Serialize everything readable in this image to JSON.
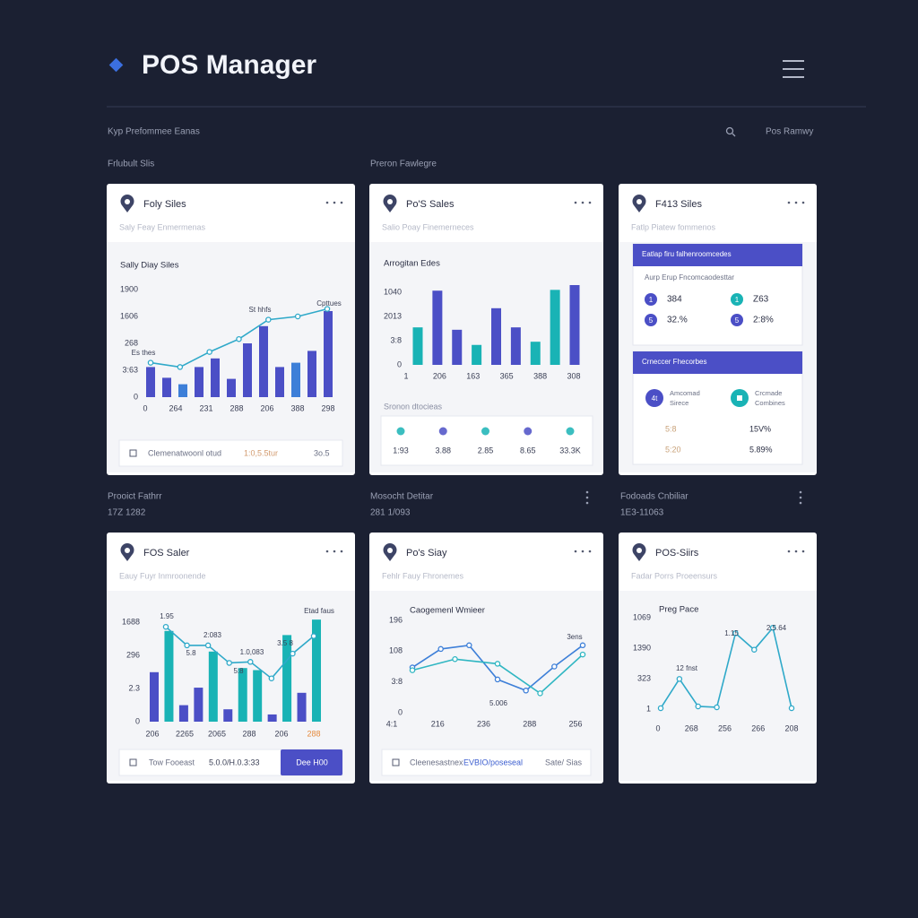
{
  "header": {
    "title": "POS Manager",
    "subtitle": "Kyp Prefommee Eanas",
    "search_label": "Pos Ramwy"
  },
  "sections": [
    "Frlubult Slis",
    "Preron Fawlegre"
  ],
  "row_labels": [
    {
      "title": "Prooict Fathrr",
      "value": "17Z 1282"
    },
    {
      "title": "Mosocht Detitar",
      "value": "281 1/093"
    },
    {
      "title": "Fodoads Cnbiliar",
      "value": "1E3-11063"
    }
  ],
  "cards": [
    {
      "title": "Foly Siles",
      "subtitle": "Saly Feay Enmermenas",
      "chart": {
        "type": "bar-line",
        "title": "Sally Diay Siles",
        "ylim": [
          0,
          100
        ],
        "ylabels": [
          "0",
          "3:63",
          "268",
          "1606",
          "1900"
        ],
        "xlabels": [
          "0",
          "264",
          "231",
          "288",
          "206",
          "388",
          "298"
        ],
        "values": [
          28,
          18,
          12,
          28,
          36,
          17,
          50,
          66,
          28,
          32,
          43,
          80
        ],
        "colors": [
          "#4b4fc6",
          "#4b4fc6",
          "#3d7fd8",
          "#4b4fc6",
          "#4b4fc6",
          "#4b4fc6",
          "#4b4fc6",
          "#4b4fc6",
          "#4b4fc6",
          "#3d7fd8",
          "#4b4fc6",
          "#4b4fc6"
        ],
        "lines": [
          {
            "color": "#2fa9c9",
            "values": [
              32,
              28,
              42,
              54,
              72,
              75,
              82
            ]
          }
        ],
        "annotations": [
          "Es thes",
          "St hhfs",
          "Cpttues"
        ]
      },
      "footer": [
        "Clemenatwoonl otud",
        "1:0,5.5tur",
        "3o.5"
      ]
    },
    {
      "title": "Po'S Sales",
      "subtitle": "Salio Poay Finemerneces",
      "chart": {
        "type": "bar",
        "title": "Arrogitan Edes",
        "ylim": [
          0,
          100
        ],
        "ylabels": [
          "0",
          "3:8",
          "2013",
          "1040"
        ],
        "xlabels": [
          "1",
          "206",
          "163",
          "365",
          "388",
          "308"
        ],
        "values": [
          47,
          93,
          44,
          25,
          71,
          47,
          29,
          94,
          100
        ],
        "colors": [
          "#19b3b5",
          "#4b4fc6",
          "#4b4fc6",
          "#19b3b5",
          "#4b4fc6",
          "#4b4fc6",
          "#19b3b5",
          "#19b3b5",
          "#4b4fc6"
        ]
      },
      "stats_title": "Sronon dtocieas",
      "stats": [
        "1:93",
        "3.88",
        "2.85",
        "8.65",
        "33.3K"
      ]
    },
    {
      "title": "F413 Siles",
      "subtitle": "Fatlp Piatew fommenos",
      "panels": [
        {
          "title": "Eatlap firu falhenroomcedes",
          "caption": "Aurp Erup Fncomcaodesttar",
          "items": [
            {
              "badge": "1",
              "text": "384",
              "color": "#4b4fc6"
            },
            {
              "badge": "1",
              "text": "Z63",
              "color": "#19b3b5"
            },
            {
              "badge": "5",
              "text": "32.%",
              "color": "#4b4fc6"
            },
            {
              "badge": "5",
              "text": "2:8%",
              "color": "#4b4fc6"
            }
          ]
        },
        {
          "title": "Crneccer Fhecorbes",
          "items": [
            {
              "badge": "4t",
              "text": [
                "Amcomad",
                "Sirece"
              ],
              "color": "#4b4fc6"
            },
            {
              "text": [
                "Crcmade",
                "Combines"
              ],
              "color": "#19b3b5"
            }
          ],
          "rows": [
            [
              "5:8",
              "15V%"
            ],
            [
              "5:20",
              "5.89%"
            ]
          ]
        }
      ]
    },
    {
      "title": "FOS Saler",
      "subtitle": "Eauy Fuyr Inmroonende",
      "chart": {
        "type": "bar-line",
        "ylim": [
          0,
          100
        ],
        "ylabels": [
          "0",
          "2.3",
          "296",
          "1688"
        ],
        "xlabels": [
          "206",
          "2265",
          "2065",
          "288",
          "206",
          "288"
        ],
        "values": [
          48,
          88,
          16,
          33,
          68,
          12,
          52,
          50,
          7,
          84,
          28,
          99
        ],
        "colors": [
          "#4b4fc6",
          "#19b3b5",
          "#4b4fc6",
          "#4b4fc6",
          "#19b3b5",
          "#4b4fc6",
          "#19b3b5",
          "#19b3b5",
          "#4b4fc6",
          "#19b3b5",
          "#4b4fc6",
          "#19b3b5"
        ],
        "lines": [
          {
            "color": "#2fa9c9",
            "values": [
              92,
              74,
              74,
              57,
              58,
              42,
              66,
              83
            ]
          }
        ],
        "annotations": [
          "1.95",
          "2:083",
          "5.8",
          "1.0,083",
          "3.5 8",
          "5:8",
          "Etad faus"
        ]
      },
      "footer": [
        "Tow Fooeast",
        "5.0.0/H.0.3:33"
      ],
      "button": "Dee H00"
    },
    {
      "title": "Po's Siay",
      "subtitle": "Fehlr Fauy Fhronemes",
      "chart": {
        "type": "line",
        "title": "Caogemenl Wmieer",
        "ylim": [
          0,
          100
        ],
        "ylabels": [
          "0",
          "3:8",
          "108",
          "196"
        ],
        "xlabels": [
          "4:1",
          "216",
          "236",
          "288",
          "256"
        ],
        "lines": [
          {
            "color": "#3d7fd8",
            "values": [
              49,
              69,
              73,
              36,
              24,
              50,
              73
            ]
          },
          {
            "color": "#2fb6c2",
            "values": [
              46,
              58,
              53,
              21,
              63
            ]
          }
        ],
        "annotations": [
          "3ens",
          "5.006"
        ]
      },
      "footer": [
        "Cleenesastnex",
        "EVBIO/poseseal",
        "Sate/ Sias"
      ]
    },
    {
      "title": "POS-Siirs",
      "subtitle": "Fadar Porrs Proeensurs",
      "chart": {
        "type": "line",
        "title": "Preg Pace",
        "ylim": [
          0,
          100
        ],
        "ylabels": [
          "1",
          "323",
          "1390",
          "1069"
        ],
        "xlabels": [
          "0",
          "268",
          "256",
          "266",
          "208"
        ],
        "lines": [
          {
            "color": "#2fa9c9",
            "values": [
              1,
              33,
              3,
              2,
              83,
              65,
              89,
              1
            ]
          }
        ],
        "annotations": [
          "12 fnst",
          "1.15",
          "2.5.64"
        ]
      }
    }
  ]
}
